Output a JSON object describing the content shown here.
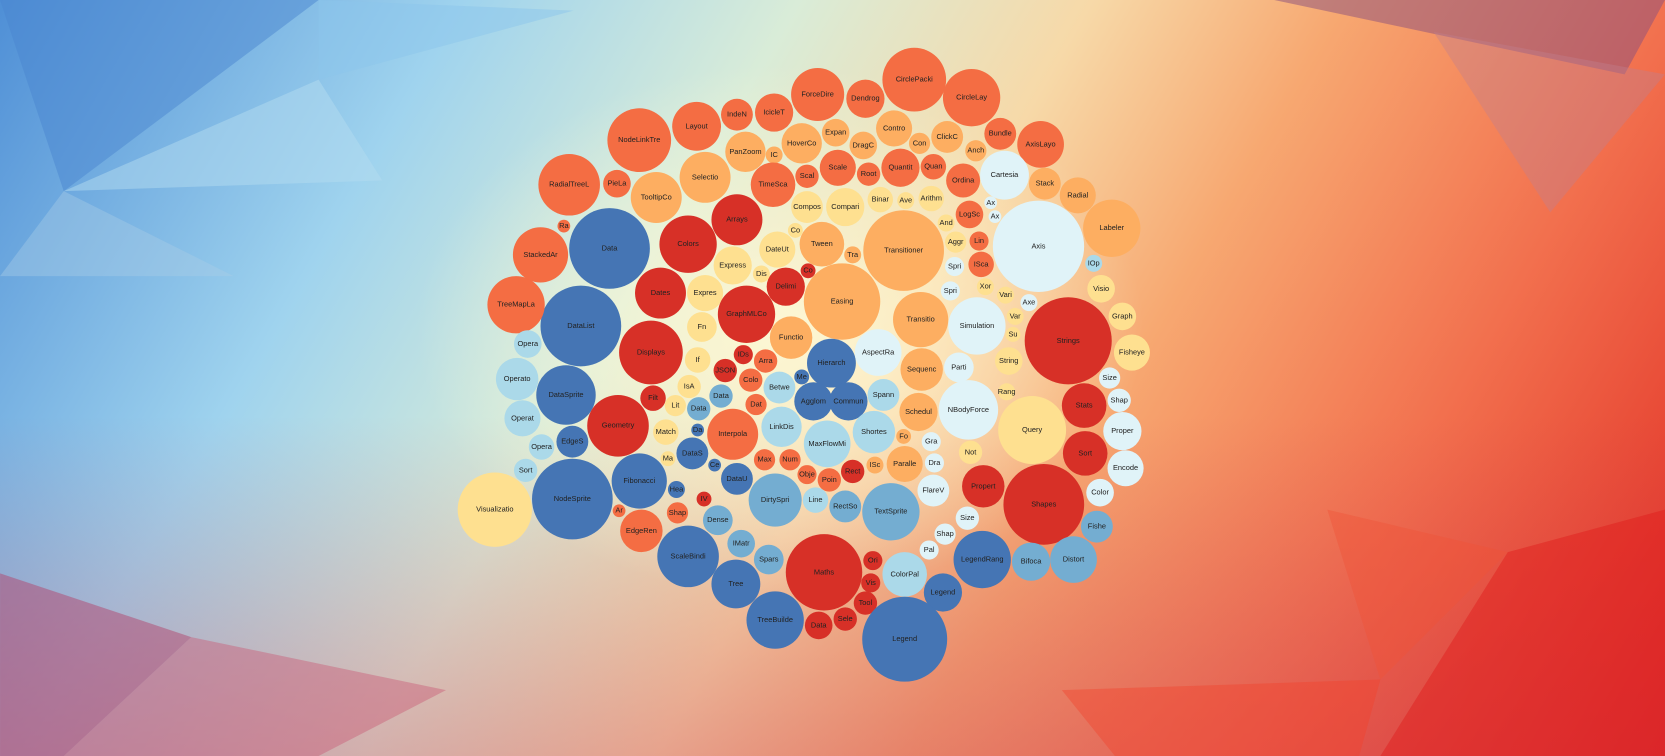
{
  "chart_data": {
    "type": "pack",
    "nodes": [
      {
        "label": "Visualizatio",
        "value": 1225,
        "color": "#fee090"
      },
      {
        "label": "NodeSprite",
        "value": 1444,
        "color": "#4575b4"
      },
      {
        "label": "DataList",
        "value": 1444,
        "color": "#4575b4"
      },
      {
        "label": "Data",
        "value": 1444,
        "color": "#4575b4"
      },
      {
        "label": "TreeMapLa",
        "value": 729,
        "color": "#f46d43"
      },
      {
        "label": "StackedAr",
        "value": 676,
        "color": "#f46d43"
      },
      {
        "label": "RadialTreeL",
        "value": 841,
        "color": "#f46d43"
      },
      {
        "label": "Ra",
        "value": 36,
        "color": "#f46d43"
      },
      {
        "label": "NodeLinkTre",
        "value": 900,
        "color": "#f46d43"
      },
      {
        "label": "PieLa",
        "value": 169,
        "color": "#f46d43"
      },
      {
        "label": "Layout",
        "value": 529,
        "color": "#f46d43"
      },
      {
        "label": "IndeN",
        "value": 225,
        "color": "#f46d43"
      },
      {
        "label": "IcicleT",
        "value": 324,
        "color": "#f46d43"
      },
      {
        "label": "ForceDire",
        "value": 625,
        "color": "#f46d43"
      },
      {
        "label": "Dendrog",
        "value": 324,
        "color": "#f46d43"
      },
      {
        "label": "CirclePacki",
        "value": 900,
        "color": "#f46d43"
      },
      {
        "label": "CircleLay",
        "value": 729,
        "color": "#f46d43"
      },
      {
        "label": "Bundle",
        "value": 225,
        "color": "#f46d43"
      },
      {
        "label": "AxisLayo",
        "value": 484,
        "color": "#f46d43"
      },
      {
        "label": "TooltipCo",
        "value": 576,
        "color": "#fdae61"
      },
      {
        "label": "Selectio",
        "value": 576,
        "color": "#fdae61"
      },
      {
        "label": "PanZoom",
        "value": 361,
        "color": "#fdae61"
      },
      {
        "label": "IC",
        "value": 64,
        "color": "#fdae61"
      },
      {
        "label": "HoverCo",
        "value": 361,
        "color": "#fdae61"
      },
      {
        "label": "Expan",
        "value": 169,
        "color": "#fdae61"
      },
      {
        "label": "DragC",
        "value": 169,
        "color": "#fdae61"
      },
      {
        "label": "Contro",
        "value": 289,
        "color": "#fdae61"
      },
      {
        "label": "ClickC",
        "value": 225,
        "color": "#fdae61"
      },
      {
        "label": "Con",
        "value": 100,
        "color": "#fdae61"
      },
      {
        "label": "Anch",
        "value": 100,
        "color": "#fdae61"
      },
      {
        "label": "Arrays",
        "value": 576,
        "color": "#d73027"
      },
      {
        "label": "Colors",
        "value": 729,
        "color": "#d73027"
      },
      {
        "label": "Dates",
        "value": 576,
        "color": "#d73027"
      },
      {
        "label": "Displays",
        "value": 900,
        "color": "#d73027"
      },
      {
        "label": "TimeSca",
        "value": 441,
        "color": "#f46d43"
      },
      {
        "label": "Scal",
        "value": 121,
        "color": "#f46d43"
      },
      {
        "label": "Scale",
        "value": 289,
        "color": "#f46d43"
      },
      {
        "label": "Root",
        "value": 121,
        "color": "#f46d43"
      },
      {
        "label": "Quantit",
        "value": 324,
        "color": "#f46d43"
      },
      {
        "label": "Quan",
        "value": 144,
        "color": "#f46d43"
      },
      {
        "label": "Ordina",
        "value": 256,
        "color": "#f46d43"
      },
      {
        "label": "Cartesia",
        "value": 529,
        "color": "#e0f3f8"
      },
      {
        "label": "Stack",
        "value": 225,
        "color": "#fdae61"
      },
      {
        "label": "Radial",
        "value": 289,
        "color": "#fdae61"
      },
      {
        "label": "Labeler",
        "value": 729,
        "color": "#fdae61"
      },
      {
        "label": "Compos",
        "value": 225,
        "color": "#fee090"
      },
      {
        "label": "Compari",
        "value": 324,
        "color": "#fee090"
      },
      {
        "label": "Binar",
        "value": 144,
        "color": "#fee090"
      },
      {
        "label": "Arithm",
        "value": 144,
        "color": "#fee090"
      },
      {
        "label": "Ave",
        "value": 64,
        "color": "#fee090"
      },
      {
        "label": "LogSc",
        "value": 169,
        "color": "#f46d43"
      },
      {
        "label": "Ax",
        "value": 36,
        "color": "#e0f3f8"
      },
      {
        "label": "Ax",
        "value": 36,
        "color": "#e0f3f8"
      },
      {
        "label": "Axis",
        "value": 1849,
        "color": "#e0f3f8"
      },
      {
        "label": "Transitioner",
        "value": 1444,
        "color": "#fdae61"
      },
      {
        "label": "Tween",
        "value": 441,
        "color": "#fdae61"
      },
      {
        "label": "DateUt",
        "value": 289,
        "color": "#fee090"
      },
      {
        "label": "Co",
        "value": 49,
        "color": "#fee090"
      },
      {
        "label": "Tra",
        "value": 64,
        "color": "#fdae61"
      },
      {
        "label": "Express",
        "value": 324,
        "color": "#fee090"
      },
      {
        "label": "Dis",
        "value": 64,
        "color": "#fee090"
      },
      {
        "label": "Delimi",
        "value": 324,
        "color": "#d73027"
      },
      {
        "label": "Co",
        "value": 49,
        "color": "#d73027"
      },
      {
        "label": "Expres",
        "value": 289,
        "color": "#fee090"
      },
      {
        "label": "GraphMLCo",
        "value": 729,
        "color": "#d73027"
      },
      {
        "label": "Easing",
        "value": 1296,
        "color": "#fdae61"
      },
      {
        "label": "Functio",
        "value": 400,
        "color": "#fdae61"
      },
      {
        "label": "Aggr",
        "value": 100,
        "color": "#fee090"
      },
      {
        "label": "And",
        "value": 64,
        "color": "#fee090"
      },
      {
        "label": "Lin",
        "value": 81,
        "color": "#f46d43"
      },
      {
        "label": "ISca",
        "value": 144,
        "color": "#f46d43"
      },
      {
        "label": "Spri",
        "value": 81,
        "color": "#e0f3f8"
      },
      {
        "label": "Xor",
        "value": 64,
        "color": "#fee090"
      },
      {
        "label": "Spri",
        "value": 81,
        "color": "#e0f3f8"
      },
      {
        "label": "Vari",
        "value": 64,
        "color": "#fee090"
      },
      {
        "label": "Axe",
        "value": 64,
        "color": "#e0f3f8"
      },
      {
        "label": "Transitio",
        "value": 676,
        "color": "#fdae61"
      },
      {
        "label": "Simulation",
        "value": 729,
        "color": "#e0f3f8"
      },
      {
        "label": "Var",
        "value": 64,
        "color": "#fee090"
      },
      {
        "label": "Su",
        "value": 49,
        "color": "#fee090"
      },
      {
        "label": "Strings",
        "value": 1681,
        "color": "#d73027"
      },
      {
        "label": "IOp",
        "value": 64,
        "color": "#abd9e9"
      },
      {
        "label": "Visio",
        "value": 169,
        "color": "#fee090"
      },
      {
        "label": "Graph",
        "value": 169,
        "color": "#fee090"
      },
      {
        "label": "Fisheye",
        "value": 289,
        "color": "#fee090"
      },
      {
        "label": "Fn",
        "value": 196,
        "color": "#fee090"
      },
      {
        "label": "If",
        "value": 144,
        "color": "#fee090"
      },
      {
        "label": "IDs",
        "value": 81,
        "color": "#d73027"
      },
      {
        "label": "Arra",
        "value": 121,
        "color": "#f46d43"
      },
      {
        "label": "JSON",
        "value": 121,
        "color": "#d73027"
      },
      {
        "label": "Colo",
        "value": 121,
        "color": "#f46d43"
      },
      {
        "label": "IsA",
        "value": 121,
        "color": "#fee090"
      },
      {
        "label": "Hierarch",
        "value": 529,
        "color": "#4575b4"
      },
      {
        "label": "AspectRa",
        "value": 484,
        "color": "#e0f3f8"
      },
      {
        "label": "Sequenc",
        "value": 400,
        "color": "#fdae61"
      },
      {
        "label": "Parti",
        "value": 196,
        "color": "#e0f3f8"
      },
      {
        "label": "String",
        "value": 169,
        "color": "#fee090"
      },
      {
        "label": "Size",
        "value": 100,
        "color": "#e0f3f8"
      },
      {
        "label": "Lit",
        "value": 100,
        "color": "#fee090"
      },
      {
        "label": "Filt",
        "value": 144,
        "color": "#d73027"
      },
      {
        "label": "Data",
        "value": 121,
        "color": "#74add1"
      },
      {
        "label": "Data",
        "value": 121,
        "color": "#74add1"
      },
      {
        "label": "Dat",
        "value": 100,
        "color": "#f46d43"
      },
      {
        "label": "Betwe",
        "value": 225,
        "color": "#abd9e9"
      },
      {
        "label": "Me",
        "value": 49,
        "color": "#4575b4"
      },
      {
        "label": "Agglom",
        "value": 324,
        "color": "#4575b4"
      },
      {
        "label": "Commun",
        "value": 324,
        "color": "#4575b4"
      },
      {
        "label": "Spann",
        "value": 225,
        "color": "#abd9e9"
      },
      {
        "label": "Schedul",
        "value": 324,
        "color": "#fdae61"
      },
      {
        "label": "NBodyForce",
        "value": 784,
        "color": "#e0f3f8"
      },
      {
        "label": "Rang",
        "value": 64,
        "color": "#fee090"
      },
      {
        "label": "Stats",
        "value": 441,
        "color": "#d73027"
      },
      {
        "label": "Shap",
        "value": 121,
        "color": "#e0f3f8"
      },
      {
        "label": "DataSprite",
        "value": 784,
        "color": "#4575b4"
      },
      {
        "label": "Operato",
        "value": 400,
        "color": "#abd9e9"
      },
      {
        "label": "Opera",
        "value": 169,
        "color": "#abd9e9"
      },
      {
        "label": "Operat",
        "value": 289,
        "color": "#abd9e9"
      },
      {
        "label": "Opera",
        "value": 144,
        "color": "#abd9e9"
      },
      {
        "label": "Sort",
        "value": 121,
        "color": "#abd9e9"
      },
      {
        "label": "EdgeS",
        "value": 225,
        "color": "#4575b4"
      },
      {
        "label": "Geometry",
        "value": 841,
        "color": "#d73027"
      },
      {
        "label": "Match",
        "value": 144,
        "color": "#fee090"
      },
      {
        "label": "Da",
        "value": 36,
        "color": "#4575b4"
      },
      {
        "label": "Interpola",
        "value": 576,
        "color": "#f46d43"
      },
      {
        "label": "LinkDis",
        "value": 361,
        "color": "#abd9e9"
      },
      {
        "label": "MaxFlowMi",
        "value": 484,
        "color": "#abd9e9"
      },
      {
        "label": "Shortes",
        "value": 400,
        "color": "#abd9e9"
      },
      {
        "label": "Fo",
        "value": 49,
        "color": "#fdae61"
      },
      {
        "label": "Gra",
        "value": 81,
        "color": "#e0f3f8"
      },
      {
        "label": "Query",
        "value": 1024,
        "color": "#fee090"
      },
      {
        "label": "Proper",
        "value": 324,
        "color": "#e0f3f8"
      },
      {
        "label": "Ma",
        "value": 49,
        "color": "#fee090"
      },
      {
        "label": "DataS",
        "value": 225,
        "color": "#4575b4"
      },
      {
        "label": "Max",
        "value": 100,
        "color": "#f46d43"
      },
      {
        "label": "Num",
        "value": 100,
        "color": "#f46d43"
      },
      {
        "label": "Obje",
        "value": 81,
        "color": "#f46d43"
      },
      {
        "label": "Poin",
        "value": 121,
        "color": "#f46d43"
      },
      {
        "label": "Rect",
        "value": 121,
        "color": "#d73027"
      },
      {
        "label": "ISc",
        "value": 64,
        "color": "#fdae61"
      },
      {
        "label": "Paralle",
        "value": 289,
        "color": "#fdae61"
      },
      {
        "label": "Dra",
        "value": 81,
        "color": "#e0f3f8"
      },
      {
        "label": "Not",
        "value": 121,
        "color": "#fee090"
      },
      {
        "label": "Sort",
        "value": 441,
        "color": "#d73027"
      },
      {
        "label": "Encode",
        "value": 289,
        "color": "#e0f3f8"
      },
      {
        "label": "Fibonacci",
        "value": 676,
        "color": "#4575b4"
      },
      {
        "label": "Ce",
        "value": 36,
        "color": "#4575b4"
      },
      {
        "label": "DataU",
        "value": 225,
        "color": "#4575b4"
      },
      {
        "label": "DirtySpri",
        "value": 625,
        "color": "#74add1"
      },
      {
        "label": "Line",
        "value": 144,
        "color": "#abd9e9"
      },
      {
        "label": "FlareV",
        "value": 225,
        "color": "#e0f3f8"
      },
      {
        "label": "Propert",
        "value": 400,
        "color": "#d73027"
      },
      {
        "label": "Shapes",
        "value": 1444,
        "color": "#d73027"
      },
      {
        "label": "Color",
        "value": 169,
        "color": "#e0f3f8"
      },
      {
        "label": "Hea",
        "value": 64,
        "color": "#4575b4"
      },
      {
        "label": "IV",
        "value": 49,
        "color": "#d73027"
      },
      {
        "label": "Ar",
        "value": 36,
        "color": "#f46d43"
      },
      {
        "label": "Shap",
        "value": 100,
        "color": "#f46d43"
      },
      {
        "label": "Dense",
        "value": 196,
        "color": "#74add1"
      },
      {
        "label": "RectSo",
        "value": 225,
        "color": "#74add1"
      },
      {
        "label": "TextSprite",
        "value": 729,
        "color": "#74add1"
      },
      {
        "label": "Size",
        "value": 121,
        "color": "#e0f3f8"
      },
      {
        "label": "Fishe",
        "value": 225,
        "color": "#74add1"
      },
      {
        "label": "EdgeRen",
        "value": 400,
        "color": "#f46d43"
      },
      {
        "label": "ScaleBindi",
        "value": 841,
        "color": "#4575b4"
      },
      {
        "label": "IMatr",
        "value": 169,
        "color": "#74add1"
      },
      {
        "label": "Spars",
        "value": 196,
        "color": "#74add1"
      },
      {
        "label": "Shap",
        "value": 100,
        "color": "#e0f3f8"
      },
      {
        "label": "LegendRang",
        "value": 729,
        "color": "#4575b4"
      },
      {
        "label": "Bifoca",
        "value": 324,
        "color": "#74add1"
      },
      {
        "label": "Distort",
        "value": 484,
        "color": "#74add1"
      },
      {
        "label": "Pal",
        "value": 81,
        "color": "#e0f3f8"
      },
      {
        "label": "Maths",
        "value": 1296,
        "color": "#d73027"
      },
      {
        "label": "Ori",
        "value": 81,
        "color": "#d73027"
      },
      {
        "label": "Vis",
        "value": 81,
        "color": "#d73027"
      },
      {
        "label": "ColorPal",
        "value": 441,
        "color": "#abd9e9"
      },
      {
        "label": "Tree",
        "value": 529,
        "color": "#4575b4"
      },
      {
        "label": "Legend",
        "value": 324,
        "color": "#4575b4"
      },
      {
        "label": "TreeBuilde",
        "value": 729,
        "color": "#4575b4"
      },
      {
        "label": "Tool",
        "value": 121,
        "color": "#d73027"
      },
      {
        "label": "Data",
        "value": 169,
        "color": "#d73027"
      },
      {
        "label": "Sele",
        "value": 121,
        "color": "#d73027"
      },
      {
        "label": "Legend",
        "value": 1600,
        "color": "#4575b4"
      }
    ]
  }
}
